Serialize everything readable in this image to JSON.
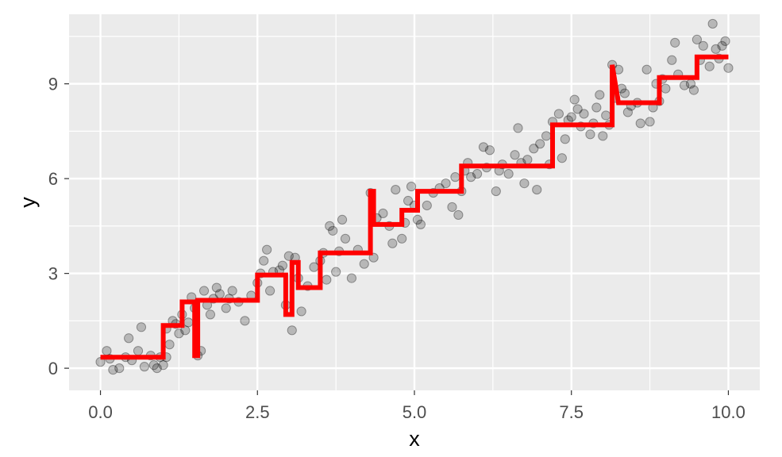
{
  "chart_data": {
    "type": "scatter",
    "title": "",
    "xlabel": "x",
    "ylabel": "y",
    "xlim": [
      -0.5,
      10.5
    ],
    "ylim": [
      -0.7,
      11.2
    ],
    "x_ticks": [
      0,
      2.5,
      5,
      7.5,
      10
    ],
    "x_tick_labels": [
      "0.0",
      "2.5",
      "5.0",
      "7.5",
      "10.0"
    ],
    "y_ticks": [
      0,
      3,
      6,
      9
    ],
    "y_tick_labels": [
      "0",
      "3",
      "6",
      "9"
    ],
    "grid": true,
    "legend": "none",
    "colors": {
      "panel_background": "#EBEBEB",
      "grid_major": "#FFFFFF",
      "points": "#000000",
      "step_line": "#FF0000"
    },
    "points": [
      [
        0.0,
        0.2
      ],
      [
        0.1,
        0.55
      ],
      [
        0.15,
        0.3
      ],
      [
        0.2,
        -0.05
      ],
      [
        0.3,
        0.0
      ],
      [
        0.4,
        0.35
      ],
      [
        0.45,
        0.95
      ],
      [
        0.5,
        0.25
      ],
      [
        0.6,
        0.55
      ],
      [
        0.65,
        1.3
      ],
      [
        0.7,
        0.05
      ],
      [
        0.8,
        0.4
      ],
      [
        0.85,
        0.1
      ],
      [
        0.9,
        0.0
      ],
      [
        0.95,
        0.35
      ],
      [
        1.0,
        0.1
      ],
      [
        1.05,
        0.35
      ],
      [
        1.1,
        0.75
      ],
      [
        1.05,
        1.25
      ],
      [
        1.15,
        1.5
      ],
      [
        1.2,
        1.4
      ],
      [
        1.25,
        1.1
      ],
      [
        1.3,
        1.7
      ],
      [
        1.35,
        1.2
      ],
      [
        1.4,
        1.45
      ],
      [
        1.45,
        2.25
      ],
      [
        1.5,
        1.9
      ],
      [
        1.55,
        0.4
      ],
      [
        1.6,
        0.55
      ],
      [
        1.65,
        2.45
      ],
      [
        1.7,
        2.0
      ],
      [
        1.75,
        1.7
      ],
      [
        1.8,
        2.2
      ],
      [
        1.85,
        2.55
      ],
      [
        1.9,
        2.35
      ],
      [
        2.0,
        1.9
      ],
      [
        2.05,
        2.2
      ],
      [
        2.1,
        2.45
      ],
      [
        2.2,
        2.1
      ],
      [
        2.3,
        1.5
      ],
      [
        2.4,
        2.3
      ],
      [
        2.5,
        2.7
      ],
      [
        2.55,
        3.0
      ],
      [
        2.6,
        3.4
      ],
      [
        2.65,
        3.75
      ],
      [
        2.7,
        2.45
      ],
      [
        2.75,
        3.05
      ],
      [
        2.85,
        3.1
      ],
      [
        2.9,
        3.25
      ],
      [
        2.95,
        2.0
      ],
      [
        3.0,
        3.55
      ],
      [
        3.05,
        1.2
      ],
      [
        3.1,
        3.5
      ],
      [
        3.15,
        2.85
      ],
      [
        3.2,
        1.8
      ],
      [
        3.3,
        2.6
      ],
      [
        3.4,
        3.2
      ],
      [
        3.5,
        3.4
      ],
      [
        3.55,
        3.65
      ],
      [
        3.6,
        2.8
      ],
      [
        3.65,
        4.5
      ],
      [
        3.7,
        4.35
      ],
      [
        3.75,
        3.05
      ],
      [
        3.8,
        3.7
      ],
      [
        3.85,
        4.7
      ],
      [
        3.9,
        4.1
      ],
      [
        4.0,
        2.85
      ],
      [
        4.1,
        3.75
      ],
      [
        4.2,
        3.3
      ],
      [
        4.3,
        5.55
      ],
      [
        4.35,
        3.5
      ],
      [
        4.4,
        4.75
      ],
      [
        4.5,
        4.9
      ],
      [
        4.6,
        4.5
      ],
      [
        4.65,
        3.95
      ],
      [
        4.7,
        5.65
      ],
      [
        4.8,
        4.1
      ],
      [
        4.85,
        4.6
      ],
      [
        4.9,
        5.3
      ],
      [
        4.95,
        5.75
      ],
      [
        5.0,
        5.15
      ],
      [
        5.05,
        4.7
      ],
      [
        5.1,
        4.55
      ],
      [
        5.2,
        5.15
      ],
      [
        5.3,
        5.55
      ],
      [
        5.4,
        5.7
      ],
      [
        5.5,
        5.85
      ],
      [
        5.6,
        5.1
      ],
      [
        5.65,
        6.05
      ],
      [
        5.7,
        4.85
      ],
      [
        5.75,
        5.6
      ],
      [
        5.8,
        6.25
      ],
      [
        5.85,
        6.5
      ],
      [
        5.9,
        6.05
      ],
      [
        6.0,
        6.15
      ],
      [
        6.1,
        7.0
      ],
      [
        6.15,
        6.35
      ],
      [
        6.2,
        6.9
      ],
      [
        6.3,
        5.6
      ],
      [
        6.35,
        6.25
      ],
      [
        6.4,
        6.45
      ],
      [
        6.5,
        6.15
      ],
      [
        6.6,
        6.75
      ],
      [
        6.65,
        7.6
      ],
      [
        6.7,
        6.5
      ],
      [
        6.75,
        5.85
      ],
      [
        6.8,
        6.6
      ],
      [
        6.9,
        6.95
      ],
      [
        6.95,
        5.65
      ],
      [
        7.0,
        7.1
      ],
      [
        7.1,
        7.35
      ],
      [
        7.15,
        6.45
      ],
      [
        7.2,
        7.8
      ],
      [
        7.3,
        8.05
      ],
      [
        7.35,
        6.65
      ],
      [
        7.4,
        7.25
      ],
      [
        7.45,
        7.85
      ],
      [
        7.5,
        7.95
      ],
      [
        7.55,
        8.5
      ],
      [
        7.6,
        8.2
      ],
      [
        7.65,
        7.65
      ],
      [
        7.7,
        8.05
      ],
      [
        7.8,
        7.4
      ],
      [
        7.85,
        7.75
      ],
      [
        7.9,
        8.25
      ],
      [
        7.95,
        8.65
      ],
      [
        8.0,
        7.35
      ],
      [
        8.05,
        8.0
      ],
      [
        8.1,
        7.7
      ],
      [
        8.15,
        9.6
      ],
      [
        8.2,
        8.55
      ],
      [
        8.25,
        9.45
      ],
      [
        8.3,
        8.85
      ],
      [
        8.35,
        8.7
      ],
      [
        8.4,
        8.1
      ],
      [
        8.45,
        8.3
      ],
      [
        8.55,
        8.4
      ],
      [
        8.6,
        7.75
      ],
      [
        8.7,
        9.45
      ],
      [
        8.75,
        7.8
      ],
      [
        8.8,
        8.25
      ],
      [
        8.85,
        9.0
      ],
      [
        8.9,
        8.45
      ],
      [
        8.95,
        9.15
      ],
      [
        9.0,
        8.85
      ],
      [
        9.1,
        9.75
      ],
      [
        9.15,
        10.3
      ],
      [
        9.2,
        9.3
      ],
      [
        9.3,
        8.95
      ],
      [
        9.4,
        9.0
      ],
      [
        9.45,
        8.8
      ],
      [
        9.5,
        10.4
      ],
      [
        9.55,
        9.75
      ],
      [
        9.6,
        10.2
      ],
      [
        9.7,
        9.55
      ],
      [
        9.75,
        10.9
      ],
      [
        9.8,
        10.1
      ],
      [
        9.85,
        9.8
      ],
      [
        9.9,
        10.2
      ],
      [
        9.95,
        10.35
      ],
      [
        10.0,
        9.5
      ]
    ],
    "step_line": {
      "name": "",
      "x": [
        0.0,
        1.0,
        1.0,
        1.3,
        1.3,
        1.5,
        1.5,
        1.55,
        1.55,
        2.5,
        2.5,
        2.95,
        2.95,
        3.05,
        3.05,
        3.15,
        3.15,
        3.5,
        3.5,
        4.3,
        4.3,
        4.35,
        4.35,
        4.8,
        4.8,
        5.05,
        5.05,
        5.75,
        5.75,
        7.2,
        7.2,
        8.15,
        8.15,
        8.25,
        8.25,
        8.9,
        8.9,
        9.5,
        9.5,
        10.0
      ],
      "y": [
        0.35,
        0.35,
        1.35,
        1.35,
        2.1,
        2.1,
        0.4,
        0.4,
        2.15,
        2.15,
        2.95,
        2.95,
        1.7,
        1.7,
        3.35,
        3.35,
        2.55,
        2.55,
        3.65,
        3.65,
        5.6,
        5.6,
        4.55,
        4.55,
        5.0,
        5.0,
        5.6,
        5.6,
        6.4,
        6.4,
        7.7,
        7.7,
        9.6,
        8.4,
        8.4,
        8.4,
        9.2,
        9.2,
        9.85,
        9.85
      ]
    }
  }
}
